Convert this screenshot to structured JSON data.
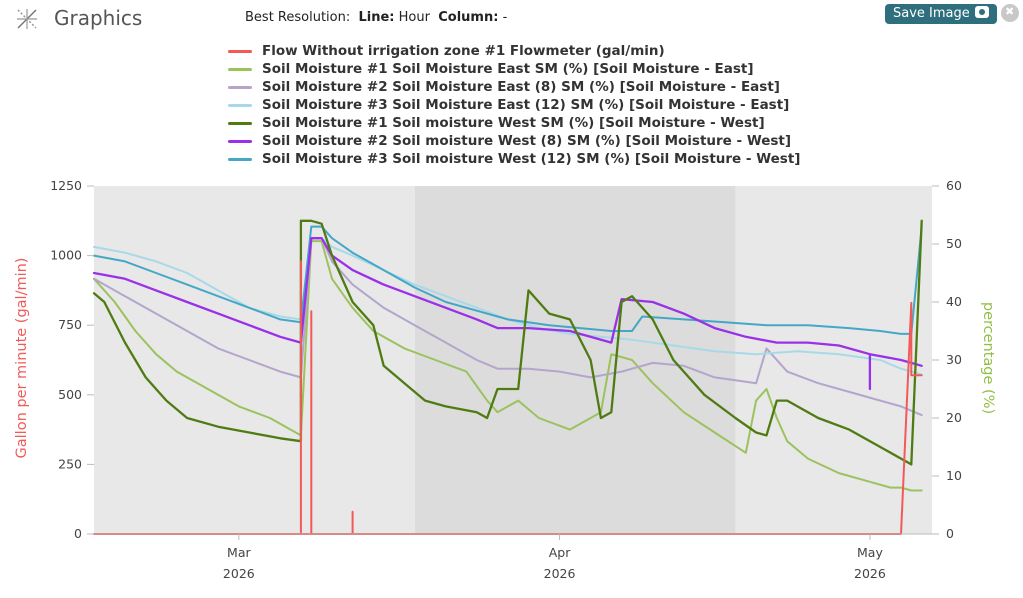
{
  "header": {
    "title": "Graphics",
    "best_resolution_label": "Best Resolution:",
    "line_label": "Line:",
    "line_value": "Hour",
    "column_label": "Column:",
    "column_value": "-",
    "save_label": "Save Image"
  },
  "colors": {
    "flow": "#f25a5a",
    "east1": "#9cc25e",
    "east2": "#b4a5cc",
    "east3": "#a8d9e8",
    "west1": "#4e7c12",
    "west2": "#9a30e8",
    "west3": "#45a7c7",
    "band_light": "#e8e8e8",
    "band_dark": "#dcdcdc",
    "left_axis": "#f25a5a",
    "right_axis": "#8fbf45"
  },
  "chart_data": {
    "type": "line",
    "title": "",
    "ylabel": "Gallon per minute (gal/min)",
    "y2label": "percentage (%)",
    "ylim": [
      0,
      1250
    ],
    "y2lim": [
      0,
      60
    ],
    "yticks": [
      0,
      250,
      500,
      750,
      1000,
      1250
    ],
    "y2ticks": [
      0,
      10,
      20,
      30,
      40,
      50,
      60
    ],
    "xlim": [
      "2026-02-15",
      "2026-05-07"
    ],
    "xticks": [
      {
        "date": "2026-03-01",
        "month": "Mar",
        "year": "2026"
      },
      {
        "date": "2026-04-01",
        "month": "Apr",
        "year": "2026"
      },
      {
        "date": "2026-05-01",
        "month": "May",
        "year": "2026"
      }
    ],
    "shaded_ranges": [
      {
        "start": "2026-02-15",
        "end": "2026-03-18",
        "shade": "light"
      },
      {
        "start": "2026-03-18",
        "end": "2026-04-18",
        "shade": "dark"
      },
      {
        "start": "2026-04-18",
        "end": "2026-05-07",
        "shade": "light"
      }
    ],
    "series": [
      {
        "name": "Flow Without irrigation zone #1 Flowmeter (gal/min)",
        "key": "flow",
        "axis": "left",
        "x": [
          "2026-02-15",
          "2026-03-07",
          "2026-03-07",
          "2026-03-07",
          "2026-03-07",
          "2026-03-08",
          "2026-03-08",
          "2026-03-08",
          "2026-03-08",
          "2026-03-08",
          "2026-03-12",
          "2026-03-12",
          "2026-03-12",
          "2026-03-12",
          "2026-05-04",
          "2026-05-05",
          "2026-05-05",
          "2026-05-05",
          "2026-05-05",
          "2026-05-06"
        ],
        "values": [
          0,
          0,
          980,
          500,
          0,
          0,
          800,
          740,
          0,
          0,
          0,
          80,
          80,
          0,
          0,
          830,
          650,
          810,
          570,
          570
        ]
      },
      {
        "name": "Soil Moisture #1 Soil Moisture East SM (%) [Soil Moisture - East]",
        "key": "east1",
        "axis": "right",
        "x": [
          "2026-02-15",
          "2026-02-17",
          "2026-02-19",
          "2026-02-21",
          "2026-02-23",
          "2026-02-26",
          "2026-03-01",
          "2026-03-04",
          "2026-03-06",
          "2026-03-07",
          "2026-03-08",
          "2026-03-09",
          "2026-03-10",
          "2026-03-12",
          "2026-03-14",
          "2026-03-17",
          "2026-03-20",
          "2026-03-23",
          "2026-03-25",
          "2026-03-26",
          "2026-03-28",
          "2026-03-30",
          "2026-04-02",
          "2026-04-05",
          "2026-04-06",
          "2026-04-08",
          "2026-04-10",
          "2026-04-13",
          "2026-04-16",
          "2026-04-19",
          "2026-04-20",
          "2026-04-21",
          "2026-04-22",
          "2026-04-23",
          "2026-04-25",
          "2026-04-28",
          "2026-05-01",
          "2026-05-03",
          "2026-05-04",
          "2026-05-05",
          "2026-05-06"
        ],
        "values": [
          44,
          40,
          35,
          31,
          28,
          25,
          22,
          20,
          18,
          17,
          50.5,
          50.5,
          44,
          39,
          35,
          32,
          30,
          28,
          23,
          21,
          23,
          20,
          18,
          21,
          31,
          30,
          26,
          21,
          17.5,
          14,
          23,
          25,
          20,
          16,
          13,
          10.5,
          9,
          8,
          8,
          7.5,
          7.5
        ]
      },
      {
        "name": "Soil Moisture #2 Soil Moisture East (8) SM (%) [Soil Moisture - East]",
        "key": "east2",
        "axis": "right",
        "x": [
          "2026-02-15",
          "2026-02-18",
          "2026-02-21",
          "2026-02-24",
          "2026-02-27",
          "2026-03-02",
          "2026-03-05",
          "2026-03-07",
          "2026-03-08",
          "2026-03-09",
          "2026-03-10",
          "2026-03-12",
          "2026-03-15",
          "2026-03-18",
          "2026-03-21",
          "2026-03-24",
          "2026-03-26",
          "2026-03-29",
          "2026-04-01",
          "2026-04-04",
          "2026-04-07",
          "2026-04-10",
          "2026-04-13",
          "2026-04-16",
          "2026-04-18",
          "2026-04-20",
          "2026-04-21",
          "2026-04-23",
          "2026-04-26",
          "2026-04-29",
          "2026-05-02",
          "2026-05-04",
          "2026-05-06"
        ],
        "values": [
          44,
          41,
          38,
          35,
          32,
          30,
          28,
          27,
          51,
          51,
          47,
          43,
          39,
          36,
          33,
          30,
          28.5,
          28.5,
          28,
          27,
          28,
          29.5,
          29,
          27,
          26.5,
          26,
          32,
          28,
          26,
          24.5,
          23,
          22,
          20.5
        ]
      },
      {
        "name": "Soil Moisture #3 Soil Moisture East (12) SM (%) [Soil Moisture - East]",
        "key": "east3",
        "axis": "right",
        "x": [
          "2026-02-15",
          "2026-02-18",
          "2026-02-21",
          "2026-02-24",
          "2026-02-27",
          "2026-03-02",
          "2026-03-05",
          "2026-03-07",
          "2026-03-08",
          "2026-03-09",
          "2026-03-10",
          "2026-03-12",
          "2026-03-15",
          "2026-03-18",
          "2026-03-21",
          "2026-03-24",
          "2026-03-27",
          "2026-03-30",
          "2026-04-02",
          "2026-04-05",
          "2026-04-08",
          "2026-04-12",
          "2026-04-16",
          "2026-04-20",
          "2026-04-24",
          "2026-04-28",
          "2026-05-02",
          "2026-05-04",
          "2026-05-06"
        ],
        "values": [
          49.5,
          48.5,
          47,
          45,
          42,
          39,
          37.5,
          37,
          51,
          51,
          49.5,
          48,
          45.5,
          43,
          41,
          39,
          37,
          35.5,
          34.5,
          34,
          33.5,
          32.5,
          31.5,
          31,
          31.5,
          31,
          30,
          28.5,
          27.5
        ]
      },
      {
        "name": "Soil Moisture #1 Soil moisture West SM (%) [Soil Moisture - West]",
        "key": "west1",
        "axis": "right",
        "x": [
          "2026-02-15",
          "2026-02-16",
          "2026-02-18",
          "2026-02-20",
          "2026-02-22",
          "2026-02-24",
          "2026-02-27",
          "2026-03-02",
          "2026-03-05",
          "2026-03-07",
          "2026-03-07",
          "2026-03-08",
          "2026-03-09",
          "2026-03-10",
          "2026-03-12",
          "2026-03-14",
          "2026-03-15",
          "2026-03-17",
          "2026-03-19",
          "2026-03-21",
          "2026-03-24",
          "2026-03-25",
          "2026-03-26",
          "2026-03-28",
          "2026-03-29",
          "2026-03-31",
          "2026-04-02",
          "2026-04-04",
          "2026-04-05",
          "2026-04-06",
          "2026-04-07",
          "2026-04-08",
          "2026-04-10",
          "2026-04-12",
          "2026-04-15",
          "2026-04-18",
          "2026-04-20",
          "2026-04-21",
          "2026-04-22",
          "2026-04-23",
          "2026-04-26",
          "2026-04-29",
          "2026-05-02",
          "2026-05-04",
          "2026-05-05",
          "2026-05-06"
        ],
        "values": [
          41.5,
          40,
          33,
          27,
          23,
          20,
          18.5,
          17.5,
          16.5,
          16,
          54,
          54,
          53.5,
          48,
          40,
          36,
          29,
          26,
          23,
          22,
          21,
          20,
          25,
          25,
          42,
          38,
          37,
          30,
          20,
          21,
          40,
          41,
          37,
          30,
          24,
          20,
          17.5,
          17,
          23,
          23,
          20,
          18,
          15,
          13,
          12,
          54
        ]
      },
      {
        "name": "Soil Moisture #2 Soil moisture West (8) SM (%) [Soil Moisture - West]",
        "key": "west2",
        "axis": "right",
        "x": [
          "2026-02-15",
          "2026-02-18",
          "2026-02-21",
          "2026-02-24",
          "2026-02-27",
          "2026-03-02",
          "2026-03-05",
          "2026-03-07",
          "2026-03-08",
          "2026-03-09",
          "2026-03-10",
          "2026-03-12",
          "2026-03-15",
          "2026-03-18",
          "2026-03-21",
          "2026-03-24",
          "2026-03-26",
          "2026-03-29",
          "2026-04-02",
          "2026-04-06",
          "2026-04-07",
          "2026-04-10",
          "2026-04-13",
          "2026-04-16",
          "2026-04-19",
          "2026-04-22",
          "2026-04-25",
          "2026-04-28",
          "2026-05-01",
          "2026-05-01",
          "2026-05-01",
          "2026-05-01",
          "2026-05-04",
          "2026-05-05",
          "2026-05-06"
        ],
        "values": [
          45,
          44,
          42,
          40,
          38,
          36,
          34,
          33,
          51,
          51,
          48,
          45.5,
          43,
          41,
          39,
          37,
          35.5,
          35.5,
          35,
          33,
          40.5,
          40,
          38,
          35.5,
          34,
          33,
          33,
          32.5,
          31,
          25,
          31,
          31,
          30,
          29.5,
          29
        ]
      },
      {
        "name": "Soil Moisture #3 Soil moisture West (12) SM (%) [Soil Moisture - West]",
        "key": "west3",
        "axis": "right",
        "x": [
          "2026-02-15",
          "2026-02-18",
          "2026-02-21",
          "2026-02-24",
          "2026-02-27",
          "2026-03-02",
          "2026-03-05",
          "2026-03-07",
          "2026-03-07",
          "2026-03-08",
          "2026-03-09",
          "2026-03-10",
          "2026-03-12",
          "2026-03-15",
          "2026-03-18",
          "2026-03-21",
          "2026-03-24",
          "2026-03-27",
          "2026-03-31",
          "2026-04-03",
          "2026-04-06",
          "2026-04-08",
          "2026-04-09",
          "2026-04-13",
          "2026-04-17",
          "2026-04-21",
          "2026-04-25",
          "2026-04-29",
          "2026-05-02",
          "2026-05-04",
          "2026-05-05",
          "2026-05-06"
        ],
        "values": [
          48,
          47,
          45,
          43,
          41,
          39,
          37,
          36.5,
          36.5,
          53,
          53,
          51,
          48.5,
          45.5,
          42.5,
          40,
          38.5,
          37,
          36,
          35.5,
          35,
          35,
          37.5,
          37,
          36.5,
          36,
          36,
          35.5,
          35,
          34.5,
          34.5,
          53
        ]
      }
    ]
  }
}
